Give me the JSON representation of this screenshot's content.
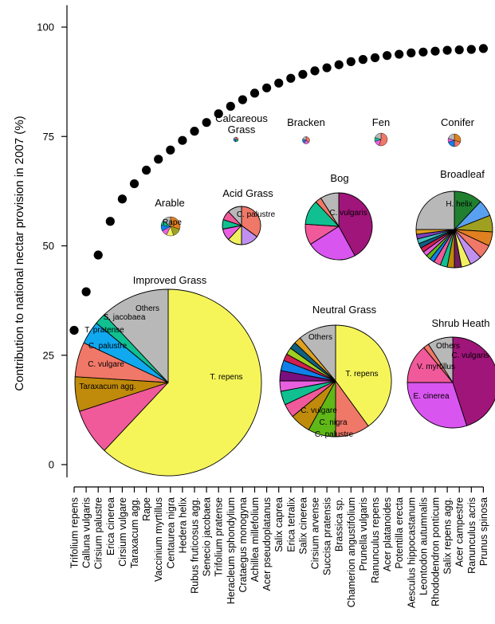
{
  "chart_data": {
    "type": "scatter",
    "ylabel": "Contribution to national nectar provision in 2007 (%)",
    "ylim": [
      -6,
      105
    ],
    "yticks": [
      0,
      25,
      50,
      75,
      100
    ],
    "grid": false,
    "marker_color": "#000000",
    "categories": [
      "Trifolium repens",
      "Calluna vulgaris",
      "Cirsium palustre",
      "Erica cinerea",
      "Cirsium vulgare",
      "Taraxacum agg.",
      "Rape",
      "Vaccinium myrtillus",
      "Centaurea nigra",
      "Hedera helix",
      "Rubus fruticosus agg.",
      "Senecio jacobaea",
      "Trifolium pratense",
      "Heracleum sphondylium",
      "Crataegus monogyna",
      "Achillea millefolium",
      "Acer pseudoplatanus",
      "Salix caprea",
      "Erica tetralix",
      "Salix cinerea",
      "Cirsium arvense",
      "Succisa pratensis",
      "Brassica sp.",
      "Chamerion angustifolium",
      "Prunella vulgaris",
      "Ranunculus repens",
      "Acer platanoides",
      "Potentilla erecta",
      "Aesculus hippocastanum",
      "Leontodon autumnalis",
      "Rhododendron ponticum",
      "Salix repens agg.",
      "Acer campestre",
      "Ranunculus acris",
      "Prunus spinosa"
    ],
    "values": [
      30.7,
      39.5,
      47.9,
      55.6,
      60.7,
      64.2,
      67.3,
      69.8,
      71.9,
      74.1,
      76.2,
      78.2,
      80.2,
      81.9,
      83.4,
      84.9,
      86.1,
      87.2,
      88.3,
      89.2,
      90.0,
      90.7,
      91.4,
      92.1,
      92.6,
      93.0,
      93.5,
      93.8,
      94.1,
      94.3,
      94.5,
      94.7,
      94.8,
      94.9,
      95.1
    ],
    "pies": [
      {
        "title": "Improved Grass",
        "slices": [
          {
            "label": "T. repens",
            "value": 62,
            "color": "#f5f55a"
          },
          {
            "label": "Taraxacum agg.",
            "value": 8,
            "color": "#f0599a"
          },
          {
            "label": "C. vulgare",
            "value": 6,
            "color": "#c08a0a"
          },
          {
            "label": "C. palustre",
            "value": 6,
            "color": "#f07868"
          },
          {
            "label": "T. pratense",
            "value": 4,
            "color": "#10a8ef"
          },
          {
            "label": "S. jacobaea",
            "value": 2,
            "color": "#10c090"
          },
          {
            "label": "Others",
            "value": 12,
            "color": "#b8b8b8"
          }
        ]
      },
      {
        "title": "Neutral Grass",
        "slices": [
          {
            "label": "T. repens",
            "value": 40,
            "color": "#f5f55a"
          },
          {
            "label": "C. palustre",
            "value": 10,
            "color": "#f07868"
          },
          {
            "label": "C. nigra",
            "value": 8,
            "color": "#60b818"
          },
          {
            "label": "C. vulgare",
            "value": 6,
            "color": "#c08a0a"
          },
          {
            "label": "",
            "value": 4,
            "color": "#f0599a"
          },
          {
            "label": "",
            "value": 4,
            "color": "#10c090"
          },
          {
            "label": "",
            "value": 3,
            "color": "#e860e0"
          },
          {
            "label": "",
            "value": 3,
            "color": "#7a1080"
          },
          {
            "label": "",
            "value": 3,
            "color": "#1080e8"
          },
          {
            "label": "",
            "value": 2,
            "color": "#d02050"
          },
          {
            "label": "",
            "value": 2,
            "color": "#a0d020"
          },
          {
            "label": "",
            "value": 2,
            "color": "#106080"
          },
          {
            "label": "",
            "value": 2,
            "color": "#e0a020"
          },
          {
            "label": "Others",
            "value": 11,
            "color": "#b8b8b8"
          }
        ]
      },
      {
        "title": "Shrub Heath",
        "slices": [
          {
            "label": "C. vulgaris",
            "value": 45,
            "color": "#a0157a"
          },
          {
            "label": "E. cinerea",
            "value": 30,
            "color": "#d955f0"
          },
          {
            "label": "V. myrtillus",
            "value": 14,
            "color": "#f0599a"
          },
          {
            "label": "",
            "value": 2,
            "color": "#f07868"
          },
          {
            "label": "Others",
            "value": 9,
            "color": "#b8b8b8"
          }
        ]
      },
      {
        "title": "Bog",
        "slices": [
          {
            "label": "C. vulgaris",
            "value": 42,
            "color": "#a0157a"
          },
          {
            "label": "",
            "value": 24,
            "color": "#d955f0"
          },
          {
            "label": "",
            "value": 10,
            "color": "#f0599a"
          },
          {
            "label": "",
            "value": 12,
            "color": "#10c090"
          },
          {
            "label": "",
            "value": 3,
            "color": "#f07868"
          },
          {
            "label": "",
            "value": 9,
            "color": "#b8b8b8"
          }
        ]
      },
      {
        "title": "Broadleaf",
        "slices": [
          {
            "label": "H. helix",
            "value": 12,
            "color": "#208030"
          },
          {
            "label": "",
            "value": 7,
            "color": "#5aa0f0"
          },
          {
            "label": "",
            "value": 7,
            "color": "#a0a020"
          },
          {
            "label": "",
            "value": 6,
            "color": "#e08020"
          },
          {
            "label": "",
            "value": 6,
            "color": "#f07868"
          },
          {
            "label": "",
            "value": 5,
            "color": "#c090f0"
          },
          {
            "label": "",
            "value": 4,
            "color": "#f0f060"
          },
          {
            "label": "",
            "value": 3,
            "color": "#702060"
          },
          {
            "label": "",
            "value": 3,
            "color": "#c08a0a"
          },
          {
            "label": "",
            "value": 3,
            "color": "#10c090"
          },
          {
            "label": "",
            "value": 3,
            "color": "#f0599a"
          },
          {
            "label": "",
            "value": 2,
            "color": "#1080e8"
          },
          {
            "label": "",
            "value": 2,
            "color": "#60b818"
          },
          {
            "label": "",
            "value": 2,
            "color": "#e860e0"
          },
          {
            "label": "",
            "value": 2,
            "color": "#d02050"
          },
          {
            "label": "",
            "value": 2,
            "color": "#106080"
          },
          {
            "label": "",
            "value": 2,
            "color": "#40c0c0"
          },
          {
            "label": "",
            "value": 2,
            "color": "#8040c0"
          },
          {
            "label": "",
            "value": 2,
            "color": "#e0a020"
          },
          {
            "label": "",
            "value": 25,
            "color": "#b8b8b8"
          }
        ]
      },
      {
        "title": "Arable",
        "slices": [
          {
            "label": "Rape",
            "value": 30,
            "color": "#e08020"
          },
          {
            "label": "",
            "value": 15,
            "color": "#a0a020"
          },
          {
            "label": "",
            "value": 12,
            "color": "#f0f060"
          },
          {
            "label": "",
            "value": 10,
            "color": "#e860e0"
          },
          {
            "label": "",
            "value": 10,
            "color": "#1080e8"
          },
          {
            "label": "",
            "value": 8,
            "color": "#10c090"
          },
          {
            "label": "",
            "value": 15,
            "color": "#b8b8b8"
          }
        ]
      },
      {
        "title": "Acid Grass",
        "slices": [
          {
            "label": "C. palustre",
            "value": 35,
            "color": "#f07868"
          },
          {
            "label": "",
            "value": 15,
            "color": "#c090f0"
          },
          {
            "label": "",
            "value": 12,
            "color": "#f0f060"
          },
          {
            "label": "",
            "value": 10,
            "color": "#e860e0"
          },
          {
            "label": "",
            "value": 8,
            "color": "#10c090"
          },
          {
            "label": "",
            "value": 8,
            "color": "#f0599a"
          },
          {
            "label": "",
            "value": 12,
            "color": "#b8b8b8"
          }
        ]
      },
      {
        "title": "Calcareous Grass",
        "slices": [
          {
            "label": "",
            "value": 30,
            "color": "#f07868"
          },
          {
            "label": "",
            "value": 25,
            "color": "#10c090"
          },
          {
            "label": "",
            "value": 25,
            "color": "#1080e8"
          },
          {
            "label": "",
            "value": 20,
            "color": "#b8b8b8"
          }
        ]
      },
      {
        "title": "Bracken",
        "slices": [
          {
            "label": "",
            "value": 35,
            "color": "#f07868"
          },
          {
            "label": "",
            "value": 25,
            "color": "#e860e0"
          },
          {
            "label": "",
            "value": 20,
            "color": "#1080e8"
          },
          {
            "label": "",
            "value": 20,
            "color": "#b8b8b8"
          }
        ]
      },
      {
        "title": "Fen",
        "slices": [
          {
            "label": "",
            "value": 55,
            "color": "#f07868"
          },
          {
            "label": "",
            "value": 15,
            "color": "#e860e0"
          },
          {
            "label": "",
            "value": 10,
            "color": "#10c090"
          },
          {
            "label": "",
            "value": 20,
            "color": "#b8b8b8"
          }
        ]
      },
      {
        "title": "Conifer",
        "slices": [
          {
            "label": "",
            "value": 30,
            "color": "#e08020"
          },
          {
            "label": "",
            "value": 20,
            "color": "#f07868"
          },
          {
            "label": "",
            "value": 20,
            "color": "#1080e8"
          },
          {
            "label": "",
            "value": 10,
            "color": "#e860e0"
          },
          {
            "label": "",
            "value": 20,
            "color": "#b8b8b8"
          }
        ]
      }
    ]
  }
}
